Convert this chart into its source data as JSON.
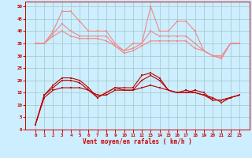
{
  "background_color": "#cceeff",
  "grid_color": "#aacccc",
  "x_labels": [
    0,
    1,
    2,
    3,
    4,
    5,
    6,
    7,
    8,
    9,
    10,
    11,
    12,
    13,
    14,
    15,
    16,
    17,
    18,
    19,
    20,
    21,
    22,
    23
  ],
  "xlabel": "Vent moyen/en rafales ( km/h )",
  "ylim": [
    0,
    52
  ],
  "yticks": [
    0,
    5,
    10,
    15,
    20,
    25,
    30,
    35,
    40,
    45,
    50
  ],
  "line_light_1": [
    35,
    35,
    40,
    48,
    48,
    44,
    40,
    40,
    40,
    35,
    32,
    35,
    35,
    50,
    40,
    40,
    44,
    44,
    40,
    32,
    30,
    30,
    35,
    35
  ],
  "line_light_2": [
    35,
    35,
    39,
    43,
    40,
    38,
    38,
    38,
    38,
    34,
    32,
    33,
    35,
    40,
    38,
    38,
    38,
    38,
    35,
    32,
    30,
    29,
    35,
    35
  ],
  "line_light_3": [
    35,
    35,
    38,
    40,
    38,
    37,
    37,
    37,
    36,
    34,
    31,
    32,
    34,
    36,
    36,
    36,
    36,
    36,
    33,
    32,
    30,
    29,
    35,
    35
  ],
  "line_dark_1": [
    2,
    14,
    18,
    21,
    21,
    20,
    17,
    13,
    15,
    17,
    17,
    17,
    22,
    23,
    21,
    16,
    15,
    15,
    16,
    15,
    12,
    12,
    13,
    14
  ],
  "line_dark_2": [
    2,
    14,
    17,
    20,
    20,
    19,
    16,
    13,
    15,
    17,
    16,
    16,
    20,
    22,
    20,
    16,
    15,
    15,
    15,
    14,
    12,
    12,
    13,
    14
  ],
  "line_dark_3": [
    2,
    13,
    16,
    17,
    17,
    17,
    16,
    14,
    14,
    16,
    16,
    16,
    17,
    18,
    17,
    16,
    15,
    16,
    15,
    14,
    13,
    11,
    13,
    14
  ],
  "color_light": "#f08888",
  "color_dark": "#bb0000",
  "marker": "s",
  "marker_size": 1.8,
  "linewidth": 0.8
}
